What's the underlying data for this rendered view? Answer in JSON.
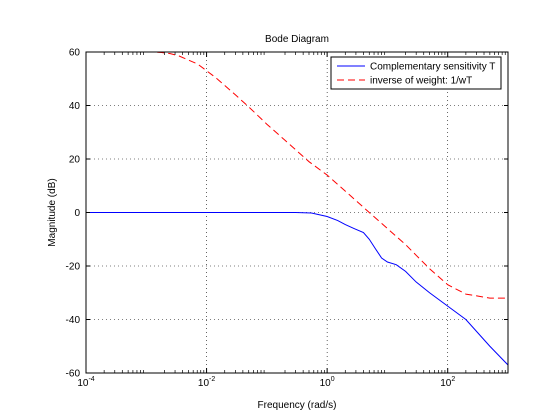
{
  "chart_data": {
    "type": "line",
    "title": "Bode Diagram",
    "xlabel": "Frequency (rad/s)",
    "ylabel": "Magnitude (dB)",
    "xscale": "log",
    "xlim": [
      0.0001,
      1000
    ],
    "ylim": [
      -60,
      60
    ],
    "grid": true,
    "legend_position": "top-right",
    "x_ticks": [
      {
        "value": 0.0001,
        "base": "10",
        "exp": "-4"
      },
      {
        "value": 0.01,
        "base": "10",
        "exp": "-2"
      },
      {
        "value": 1,
        "base": "10",
        "exp": "0"
      },
      {
        "value": 100,
        "base": "10",
        "exp": "2"
      }
    ],
    "y_ticks": [
      {
        "value": 60,
        "label": "60"
      },
      {
        "value": 40,
        "label": "40"
      },
      {
        "value": 20,
        "label": "20"
      },
      {
        "value": 0,
        "label": "0"
      },
      {
        "value": -20,
        "label": "-20"
      },
      {
        "value": -40,
        "label": "-40"
      },
      {
        "value": -60,
        "label": "-60"
      }
    ],
    "series": [
      {
        "name": "Complementary sensitivity T",
        "color": "#0000ff",
        "dash": "solid",
        "x": [
          0.0001,
          0.001,
          0.01,
          0.1,
          0.3,
          0.55,
          1,
          1.5,
          2,
          2.8,
          4,
          5,
          6.3,
          8,
          10,
          14,
          20,
          30,
          50,
          100,
          200,
          500,
          1000
        ],
        "y": [
          0,
          0,
          0,
          0,
          0,
          -0.2,
          -1.5,
          -3,
          -4.5,
          -6,
          -7.5,
          -10,
          -13.5,
          -17,
          -18.5,
          -19.5,
          -22,
          -26,
          -30,
          -35,
          -40,
          -50,
          -57
        ]
      },
      {
        "name": "inverse of weight: 1/wT",
        "color": "#ff0000",
        "dash": "dashed",
        "x": [
          0.001,
          0.0013,
          0.0018,
          0.0025,
          0.0035,
          0.005,
          0.0071,
          0.01,
          0.014,
          0.02,
          0.03,
          0.05,
          0.1,
          0.2,
          0.5,
          1,
          2,
          5,
          10,
          20,
          30,
          50,
          100,
          200,
          500,
          1000
        ],
        "y": [
          60,
          60,
          59.8,
          59.4,
          58.5,
          57,
          55.5,
          53,
          50.5,
          47.5,
          44,
          39.5,
          33,
          27,
          19,
          14,
          8,
          0,
          -6,
          -12,
          -16,
          -21,
          -27,
          -30.5,
          -32,
          -32
        ]
      }
    ]
  }
}
